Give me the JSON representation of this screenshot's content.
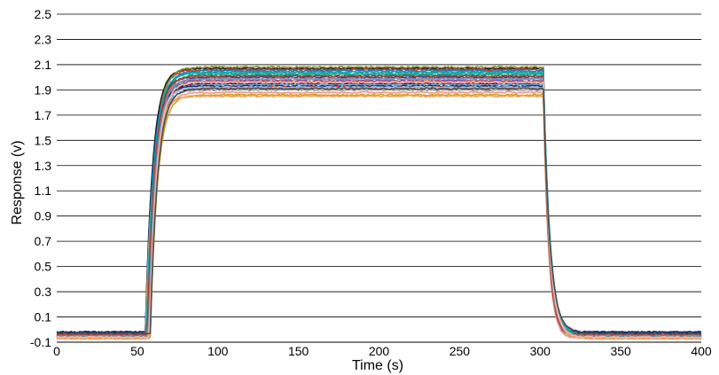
{
  "chart_data": {
    "type": "line",
    "title": "",
    "xlabel": "Time (s)",
    "ylabel": "Response (v)",
    "xlim": [
      0,
      400
    ],
    "ylim": [
      -0.1,
      2.5
    ],
    "x_ticks": [
      0,
      50,
      100,
      150,
      200,
      250,
      300,
      350,
      400
    ],
    "y_ticks": [
      -0.1,
      0.1,
      0.3,
      0.5,
      0.7,
      0.9,
      1.1,
      1.3,
      1.5,
      1.7,
      1.9,
      2.1,
      2.3,
      2.5
    ],
    "x_tick_labels": [
      "0",
      "50",
      "100",
      "150",
      "200",
      "250",
      "300",
      "350",
      "400"
    ],
    "y_tick_labels": [
      "-0.1",
      "0.1",
      "0.3",
      "0.5",
      "0.7",
      "0.9",
      "1.1",
      "1.3",
      "1.5",
      "1.7",
      "1.9",
      "2.1",
      "2.3",
      "2.5"
    ],
    "grid": "horizontal",
    "legend": "none",
    "pulse_on_time": 60,
    "pulse_off_time": 302,
    "series": [
      {
        "color": "#1a1a1a",
        "baseline": -0.03,
        "plateau": 2.07
      },
      {
        "color": "#c0392b",
        "baseline": -0.04,
        "plateau": 2.06
      },
      {
        "color": "#7f8c2f",
        "baseline": -0.05,
        "plateau": 2.08
      },
      {
        "color": "#2e75b6",
        "baseline": -0.05,
        "plateau": 2.05
      },
      {
        "color": "#16a3a8",
        "baseline": -0.06,
        "plateau": 2.04
      },
      {
        "color": "#2ca06a",
        "baseline": -0.05,
        "plateau": 2.02
      },
      {
        "color": "#1f3a93",
        "baseline": -0.02,
        "plateau": 2.0
      },
      {
        "color": "#e07b39",
        "baseline": -0.07,
        "plateau": 1.98
      },
      {
        "color": "#8e44ad",
        "baseline": -0.05,
        "plateau": 1.97
      },
      {
        "color": "#3b8fd9",
        "baseline": -0.06,
        "plateau": 1.96
      },
      {
        "color": "#8b0000",
        "baseline": -0.05,
        "plateau": 1.95
      },
      {
        "color": "#5dade2",
        "baseline": -0.04,
        "plateau": 1.94
      },
      {
        "color": "#0b2f6b",
        "baseline": -0.02,
        "plateau": 1.93
      },
      {
        "color": "#e74c3c",
        "baseline": -0.06,
        "plateau": 1.92
      },
      {
        "color": "#a3c4e8",
        "baseline": -0.05,
        "plateau": 1.92
      },
      {
        "color": "#9b9b9b",
        "baseline": -0.06,
        "plateau": 1.9
      },
      {
        "color": "#f1948a",
        "baseline": -0.07,
        "plateau": 1.88
      },
      {
        "color": "#c9a227",
        "baseline": -0.06,
        "plateau": 1.86
      },
      {
        "color": "#f0a050",
        "baseline": -0.07,
        "plateau": 1.85
      },
      {
        "color": "#00b0b0",
        "baseline": -0.05,
        "plateau": 2.03
      },
      {
        "color": "#b03a2e",
        "baseline": -0.04,
        "plateau": 2.01
      },
      {
        "color": "#6c8ebf",
        "baseline": -0.05,
        "plateau": 1.99
      },
      {
        "color": "#ffb6a0",
        "baseline": -0.06,
        "plateau": 1.96
      },
      {
        "color": "#4d4d4d",
        "baseline": -0.03,
        "plateau": 1.91
      }
    ]
  }
}
